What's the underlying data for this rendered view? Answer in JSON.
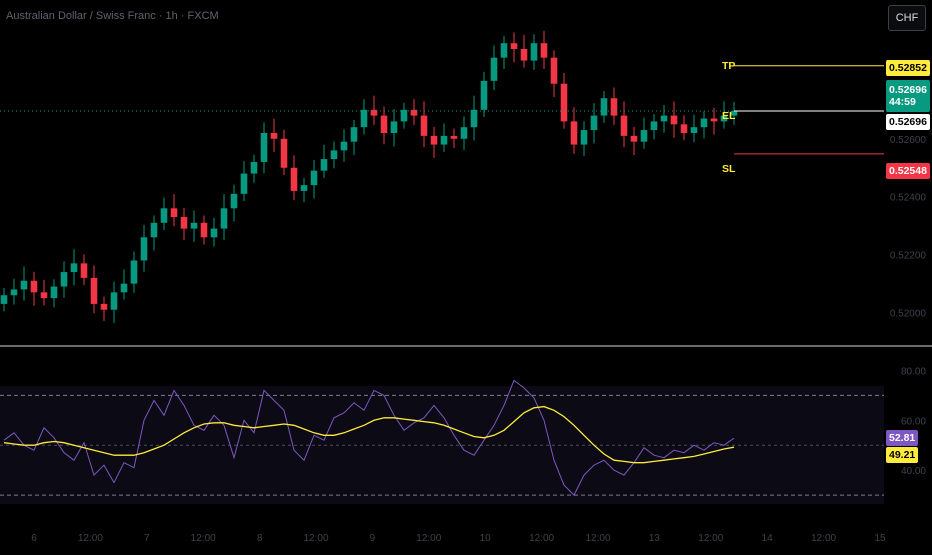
{
  "header": {
    "symbol_line": "Australian Dollar / Swiss Franc · 1h · FXCM"
  },
  "currency_button": "CHF",
  "levels": {
    "tp": {
      "label": "TP",
      "value": "0.52852",
      "color": "#ffeb3b"
    },
    "el": {
      "label": "EL",
      "value": "0.52696",
      "color": "#ffffff"
    },
    "sl": {
      "label": "SL",
      "value": "0.52548",
      "color": "#f23645"
    }
  },
  "last_price": {
    "value": "0.52696",
    "countdown": "44:59",
    "color": "#089981"
  },
  "price_axis_labels": [
    "0.52600",
    "0.52400",
    "0.52200",
    "0.52000"
  ],
  "rsi_axis_labels": [
    "80.00",
    "60.00",
    "40.00"
  ],
  "rsi_badges": {
    "rsi": "52.81",
    "rsi_color": "#7e57c2",
    "ma": "49.21",
    "ma_color": "#ffeb3b"
  },
  "time_axis_labels": [
    "6",
    "12:00",
    "7",
    "12:00",
    "8",
    "12:00",
    "9",
    "12:00",
    "10",
    "12:00",
    "12:00",
    "13",
    "12:00",
    "14",
    "12:00",
    "15"
  ],
  "colors": {
    "up": "#089981",
    "down": "#f23645",
    "rsi_line": "#7e57c2",
    "rsi_ma": "#ffeb3b"
  },
  "chart_data": [
    {
      "type": "candlestick",
      "ylim": [
        0.5194,
        0.5301
      ],
      "ohlc_close_trend": [
        0.5206,
        0.5208,
        0.5211,
        0.5207,
        0.5205,
        0.5209,
        0.5214,
        0.5217,
        0.5212,
        0.5203,
        0.5201,
        0.5207,
        0.521,
        0.5218,
        0.5226,
        0.5231,
        0.5236,
        0.5233,
        0.5229,
        0.5231,
        0.5226,
        0.5229,
        0.5236,
        0.5241,
        0.5248,
        0.5252,
        0.5262,
        0.526,
        0.525,
        0.5242,
        0.5244,
        0.5249,
        0.5253,
        0.5256,
        0.5259,
        0.5264,
        0.527,
        0.5268,
        0.5262,
        0.5266,
        0.527,
        0.5268,
        0.5261,
        0.5258,
        0.5261,
        0.526,
        0.5264,
        0.527,
        0.528,
        0.5288,
        0.5293,
        0.5291,
        0.5287,
        0.5293,
        0.5288,
        0.5279,
        0.5266,
        0.5258,
        0.5263,
        0.5268,
        0.5274,
        0.5268,
        0.5261,
        0.5259,
        0.5263,
        0.5266,
        0.5268,
        0.5265,
        0.5262,
        0.5264,
        0.5267,
        0.5266,
        0.5268,
        0.52696
      ],
      "levels": {
        "TP": 0.52852,
        "EL": 0.52696,
        "SL": 0.52548
      },
      "last": 0.52696
    },
    {
      "type": "line",
      "series": [
        {
          "name": "RSI",
          "last": 52.81
        },
        {
          "name": "MA",
          "last": 49.21
        }
      ],
      "ylim": [
        20,
        85
      ],
      "bands": [
        70,
        50,
        30
      ],
      "rsi_values": [
        52,
        55,
        50,
        48,
        57,
        53,
        47,
        44,
        51,
        38,
        42,
        35,
        43,
        41,
        60,
        68,
        62,
        72,
        66,
        58,
        56,
        62,
        58,
        45,
        60,
        55,
        72,
        68,
        64,
        48,
        44,
        54,
        52,
        61,
        63,
        67,
        64,
        72,
        70,
        62,
        56,
        59,
        61,
        66,
        61,
        54,
        48,
        46,
        52,
        58,
        66,
        76,
        73,
        69,
        60,
        44,
        34,
        30,
        38,
        42,
        44,
        40,
        38,
        43,
        49,
        46,
        45,
        48,
        47,
        50,
        48,
        51,
        50,
        52.81
      ],
      "ma_values": [
        51,
        50.5,
        50,
        50,
        51,
        51.5,
        51,
        50,
        49,
        48,
        47,
        46,
        46,
        46,
        47,
        48.5,
        50,
        52.5,
        55,
        57,
        58.5,
        59,
        59,
        58,
        57.5,
        57,
        57.5,
        58,
        58.5,
        58,
        56.5,
        55,
        54,
        54,
        55,
        56.5,
        58,
        60,
        61,
        61,
        60.5,
        60,
        59.5,
        59,
        58,
        56.5,
        55,
        53.5,
        53,
        54,
        56,
        59.5,
        63,
        65,
        65.5,
        64,
        61.5,
        58,
        54,
        50,
        46.5,
        44,
        43.5,
        43,
        43,
        43.5,
        44,
        44.5,
        45,
        45.5,
        46.5,
        47.5,
        48.5,
        49.21
      ]
    }
  ]
}
